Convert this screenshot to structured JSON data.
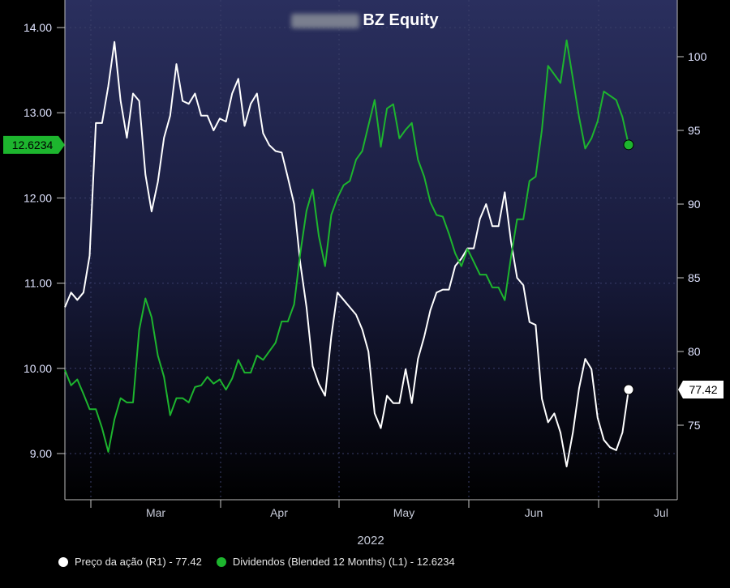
{
  "chart_data": {
    "type": "line",
    "title_visible": "BZ Equity",
    "title_redacted_prefix": true,
    "xlabel": "2022",
    "x_ticks": [
      "Mar",
      "Apr",
      "May",
      "Jun",
      "Jul"
    ],
    "y_left": {
      "ticks": [
        "9.00",
        "10.00",
        "11.00",
        "12.00",
        "13.00",
        "14.00"
      ],
      "range": [
        8.5,
        14.2
      ]
    },
    "y_right": {
      "ticks": [
        "75",
        "80",
        "85",
        "90",
        "95",
        "100"
      ],
      "range": [
        70,
        103
      ]
    },
    "grid": true,
    "legend_position": "bottom-left",
    "series": [
      {
        "name": "Preço da ação (R1) - 77.42",
        "axis": "right",
        "color": "#ffffff",
        "last_value_label": "77.42",
        "values": [
          83.0,
          84.0,
          83.5,
          84.0,
          86.5,
          95.5,
          95.5,
          98.0,
          101.0,
          97.0,
          94.5,
          97.5,
          97.0,
          92.0,
          89.5,
          91.5,
          94.5,
          96.0,
          99.5,
          97.0,
          96.8,
          97.5,
          96.0,
          96.0,
          95.0,
          95.8,
          95.6,
          97.5,
          98.5,
          95.3,
          96.8,
          97.5,
          94.8,
          94.0,
          93.6,
          93.5,
          91.8,
          90.0,
          86.0,
          83.0,
          79.0,
          77.8,
          77.0,
          81.0,
          84.0,
          83.5,
          83.0,
          82.5,
          81.5,
          80.0,
          75.8,
          74.8,
          77.0,
          76.5,
          76.5,
          78.8,
          76.5,
          79.5,
          81.0,
          82.8,
          84.0,
          84.2,
          84.2,
          85.8,
          86.3,
          87.0,
          87.0,
          89.0,
          90.0,
          88.5,
          88.5,
          90.8,
          87.5,
          85.0,
          84.5,
          82.0,
          81.8,
          76.8,
          75.2,
          75.8,
          74.5,
          72.2,
          74.5,
          77.5,
          79.5,
          78.8,
          75.5,
          74.0,
          73.5,
          73.3,
          74.5,
          77.42
        ]
      },
      {
        "name": "Dividendos (Blended 12 Months) (L1) - 12.6234",
        "axis": "left",
        "color": "#1db52e",
        "last_value_label": "12.6234",
        "values": [
          9.98,
          9.8,
          9.87,
          9.7,
          9.52,
          9.52,
          9.3,
          9.02,
          9.4,
          9.65,
          9.6,
          9.6,
          10.45,
          10.82,
          10.6,
          10.15,
          9.9,
          9.45,
          9.65,
          9.65,
          9.6,
          9.78,
          9.8,
          9.9,
          9.82,
          9.87,
          9.75,
          9.88,
          10.1,
          9.95,
          9.95,
          10.15,
          10.1,
          10.2,
          10.3,
          10.55,
          10.55,
          10.75,
          11.35,
          11.85,
          12.1,
          11.55,
          11.2,
          11.8,
          12.0,
          12.15,
          12.2,
          12.45,
          12.55,
          12.85,
          13.15,
          12.6,
          13.05,
          13.1,
          12.7,
          12.8,
          12.88,
          12.45,
          12.25,
          11.95,
          11.8,
          11.78,
          11.58,
          11.35,
          11.2,
          11.4,
          11.25,
          11.1,
          11.1,
          10.95,
          10.95,
          10.8,
          11.3,
          11.75,
          11.75,
          12.2,
          12.25,
          12.8,
          13.55,
          13.45,
          13.35,
          13.85,
          13.4,
          12.95,
          12.58,
          12.7,
          12.9,
          13.25,
          13.2,
          13.15,
          12.95,
          12.6234
        ]
      }
    ]
  },
  "legend": {
    "items": [
      {
        "label": "Preço da ação (R1) - 77.42",
        "color": "#ffffff"
      },
      {
        "label": "Dividendos (Blended 12 Months) (L1) - 12.6234",
        "color": "#1db52e"
      }
    ]
  }
}
